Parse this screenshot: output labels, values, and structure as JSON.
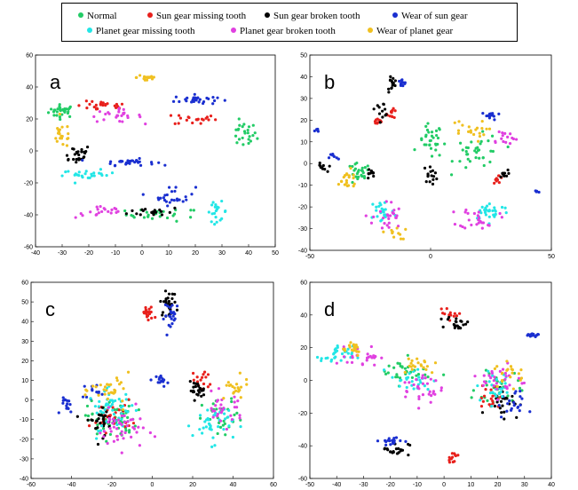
{
  "legend": {
    "items": [
      {
        "label": "Normal",
        "color": "#22cc66"
      },
      {
        "label": "Sun gear missing tooth",
        "color": "#e8201c"
      },
      {
        "label": "Sun  gear broken tooth",
        "color": "#000000"
      },
      {
        "label": "Wear of sun gear",
        "color": "#1a2fd0"
      },
      {
        "label": "Planet gear missing tooth",
        "color": "#22e6e6"
      },
      {
        "label": "Planet gear broken tooth",
        "color": "#e040e0"
      },
      {
        "label": "Wear of planet gear",
        "color": "#f0c020"
      }
    ]
  },
  "chart_data": [
    {
      "type": "scatter",
      "panel_label": "a",
      "xlim": [
        -40,
        50
      ],
      "ylim": [
        -60,
        60
      ],
      "xticks": [
        -40,
        -30,
        -20,
        -10,
        0,
        10,
        20,
        30,
        40,
        50
      ],
      "yticks": [
        -60,
        -40,
        -20,
        0,
        20,
        40,
        60
      ],
      "grid": false,
      "series": [
        {
          "name": "Normal",
          "clusters": [
            [
              -30,
              25,
              5,
              4,
              30
            ],
            [
              8,
              -40,
              14,
              4,
              25
            ],
            [
              38,
              10,
              5,
              8,
              25
            ]
          ]
        },
        {
          "name": "Sun gear missing tooth",
          "clusters": [
            [
              -15,
              28,
              10,
              3,
              25
            ],
            [
              20,
              20,
              8,
              4,
              20
            ]
          ]
        },
        {
          "name": "Sun  gear broken tooth",
          "clusters": [
            [
              -25,
              -2,
              6,
              6,
              25
            ],
            [
              5,
              -38,
              10,
              3,
              20
            ]
          ]
        },
        {
          "name": "Wear of sun gear",
          "clusters": [
            [
              -5,
              -7,
              10,
              2,
              30
            ],
            [
              20,
              32,
              8,
              3,
              30
            ],
            [
              12,
              -28,
              8,
              6,
              25
            ]
          ]
        },
        {
          "name": "Planet gear missing tooth",
          "clusters": [
            [
              -20,
              -15,
              10,
              3,
              25
            ],
            [
              28,
              -38,
              4,
              6,
              20
            ]
          ]
        },
        {
          "name": "Planet gear broken tooth",
          "clusters": [
            [
              -10,
              22,
              10,
              4,
              25
            ],
            [
              -15,
              -38,
              10,
              4,
              20
            ]
          ]
        },
        {
          "name": "Wear of planet gear",
          "clusters": [
            [
              2,
              46,
              4,
              3,
              15
            ],
            [
              -30,
              10,
              4,
              8,
              20
            ]
          ]
        }
      ]
    },
    {
      "type": "scatter",
      "panel_label": "b",
      "xlim": [
        -50,
        50
      ],
      "ylim": [
        -40,
        50
      ],
      "xticks": [
        -50,
        0,
        50
      ],
      "yticks": [
        -40,
        -30,
        -20,
        -10,
        0,
        10,
        20,
        30,
        40,
        50
      ],
      "grid": false,
      "series": [
        {
          "name": "Normal",
          "clusters": [
            [
              -30,
              -5,
              5,
              5,
              25
            ],
            [
              0,
              10,
              5,
              8,
              30
            ],
            [
              20,
              5,
              10,
              8,
              35
            ]
          ]
        },
        {
          "name": "Sun gear missing tooth",
          "clusters": [
            [
              -22,
              20,
              2,
              2,
              10
            ],
            [
              -16,
              23,
              2,
              2,
              12
            ],
            [
              28,
              -7,
              2,
              2,
              10
            ]
          ]
        },
        {
          "name": "Sun  gear broken tooth",
          "clusters": [
            [
              -16,
              37,
              2,
              4,
              15
            ],
            [
              -20,
              25,
              3,
              3,
              12
            ],
            [
              -45,
              -2,
              2,
              2,
              10
            ],
            [
              -25,
              -5,
              2,
              3,
              10
            ],
            [
              0,
              -5,
              3,
              4,
              15
            ],
            [
              30,
              -5,
              2,
              2,
              10
            ]
          ]
        },
        {
          "name": "Wear of sun gear",
          "clusters": [
            [
              -12,
              37,
              2,
              2,
              12
            ],
            [
              -47,
              15,
              1,
              1,
              6
            ],
            [
              -40,
              3,
              2,
              2,
              8
            ],
            [
              25,
              22,
              4,
              2,
              14
            ],
            [
              44,
              -13,
              1,
              1,
              5
            ]
          ]
        },
        {
          "name": "Planet gear missing tooth",
          "clusters": [
            [
              -20,
              -22,
              5,
              6,
              25
            ],
            [
              25,
              -22,
              8,
              4,
              30
            ]
          ]
        },
        {
          "name": "Planet gear broken tooth",
          "clusters": [
            [
              -18,
              -25,
              6,
              8,
              25
            ],
            [
              20,
              -25,
              8,
              5,
              25
            ],
            [
              30,
              12,
              6,
              4,
              15
            ]
          ]
        },
        {
          "name": "Wear of planet gear",
          "clusters": [
            [
              -35,
              -8,
              6,
              5,
              20
            ],
            [
              15,
              15,
              8,
              5,
              20
            ],
            [
              -15,
              -32,
              5,
              3,
              12
            ]
          ]
        }
      ]
    },
    {
      "type": "scatter",
      "panel_label": "c",
      "xlim": [
        -60,
        60
      ],
      "ylim": [
        -40,
        60
      ],
      "xticks": [
        -60,
        -40,
        -20,
        0,
        20,
        40,
        60
      ],
      "yticks": [
        -40,
        -30,
        -20,
        -10,
        0,
        10,
        20,
        30,
        40,
        50,
        60
      ],
      "grid": false,
      "series": [
        {
          "name": "Normal",
          "clusters": [
            [
              -20,
              -10,
              12,
              10,
              60
            ],
            [
              35,
              -10,
              10,
              10,
              30
            ]
          ]
        },
        {
          "name": "Sun gear missing tooth",
          "clusters": [
            [
              -2,
              44,
              3,
              4,
              20
            ],
            [
              -20,
              -8,
              10,
              8,
              30
            ],
            [
              25,
              10,
              5,
              6,
              15
            ]
          ]
        },
        {
          "name": "Sun  gear broken tooth",
          "clusters": [
            [
              8,
              49,
              4,
              6,
              30
            ],
            [
              -25,
              -10,
              8,
              8,
              30
            ],
            [
              22,
              5,
              4,
              4,
              25
            ]
          ]
        },
        {
          "name": "Wear of sun gear",
          "clusters": [
            [
              10,
              43,
              4,
              7,
              25
            ],
            [
              -42,
              -3,
              3,
              4,
              15
            ],
            [
              5,
              10,
              3,
              3,
              15
            ],
            [
              -30,
              5,
              4,
              4,
              12
            ]
          ]
        },
        {
          "name": "Planet gear missing tooth",
          "clusters": [
            [
              -20,
              -5,
              12,
              10,
              50
            ],
            [
              30,
              -12,
              10,
              10,
              40
            ]
          ]
        },
        {
          "name": "Planet gear broken tooth",
          "clusters": [
            [
              -15,
              -15,
              12,
              10,
              45
            ],
            [
              35,
              -5,
              10,
              8,
              30
            ]
          ]
        },
        {
          "name": "Wear of planet gear",
          "clusters": [
            [
              -20,
              5,
              10,
              8,
              30
            ],
            [
              40,
              5,
              8,
              6,
              20
            ]
          ]
        }
      ]
    },
    {
      "type": "scatter",
      "panel_label": "d",
      "xlim": [
        -50,
        40
      ],
      "ylim": [
        -60,
        60
      ],
      "xticks": [
        -50,
        -40,
        -30,
        -20,
        -10,
        0,
        10,
        20,
        30,
        40
      ],
      "yticks": [
        -60,
        -40,
        -20,
        0,
        20,
        40,
        60
      ],
      "grid": false,
      "series": [
        {
          "name": "Normal",
          "clusters": [
            [
              -15,
              5,
              10,
              8,
              30
            ],
            [
              20,
              -5,
              8,
              12,
              30
            ]
          ]
        },
        {
          "name": "Sun gear missing tooth",
          "clusters": [
            [
              2,
              40,
              4,
              3,
              12
            ],
            [
              3,
              -47,
              2,
              3,
              12
            ],
            [
              18,
              -10,
              6,
              8,
              20
            ]
          ]
        },
        {
          "name": "Sun  gear broken tooth",
          "clusters": [
            [
              5,
              35,
              4,
              4,
              20
            ],
            [
              -18,
              -42,
              5,
              4,
              20
            ],
            [
              22,
              -12,
              6,
              10,
              25
            ]
          ]
        },
        {
          "name": "Wear of sun gear",
          "clusters": [
            [
              32,
              27,
              3,
              2,
              15
            ],
            [
              -20,
              -37,
              4,
              3,
              18
            ],
            [
              25,
              -15,
              5,
              8,
              20
            ]
          ]
        },
        {
          "name": "Planet gear missing tooth",
          "clusters": [
            [
              -40,
              15,
              6,
              6,
              30
            ],
            [
              -12,
              0,
              8,
              8,
              25
            ],
            [
              20,
              -5,
              8,
              10,
              25
            ]
          ]
        },
        {
          "name": "Planet gear broken tooth",
          "clusters": [
            [
              -30,
              15,
              6,
              6,
              25
            ],
            [
              -8,
              -5,
              8,
              10,
              30
            ],
            [
              22,
              0,
              8,
              10,
              30
            ]
          ]
        },
        {
          "name": "Wear of planet gear",
          "clusters": [
            [
              -35,
              20,
              5,
              5,
              20
            ],
            [
              -10,
              10,
              8,
              6,
              20
            ],
            [
              25,
              5,
              6,
              8,
              20
            ]
          ]
        }
      ]
    }
  ]
}
